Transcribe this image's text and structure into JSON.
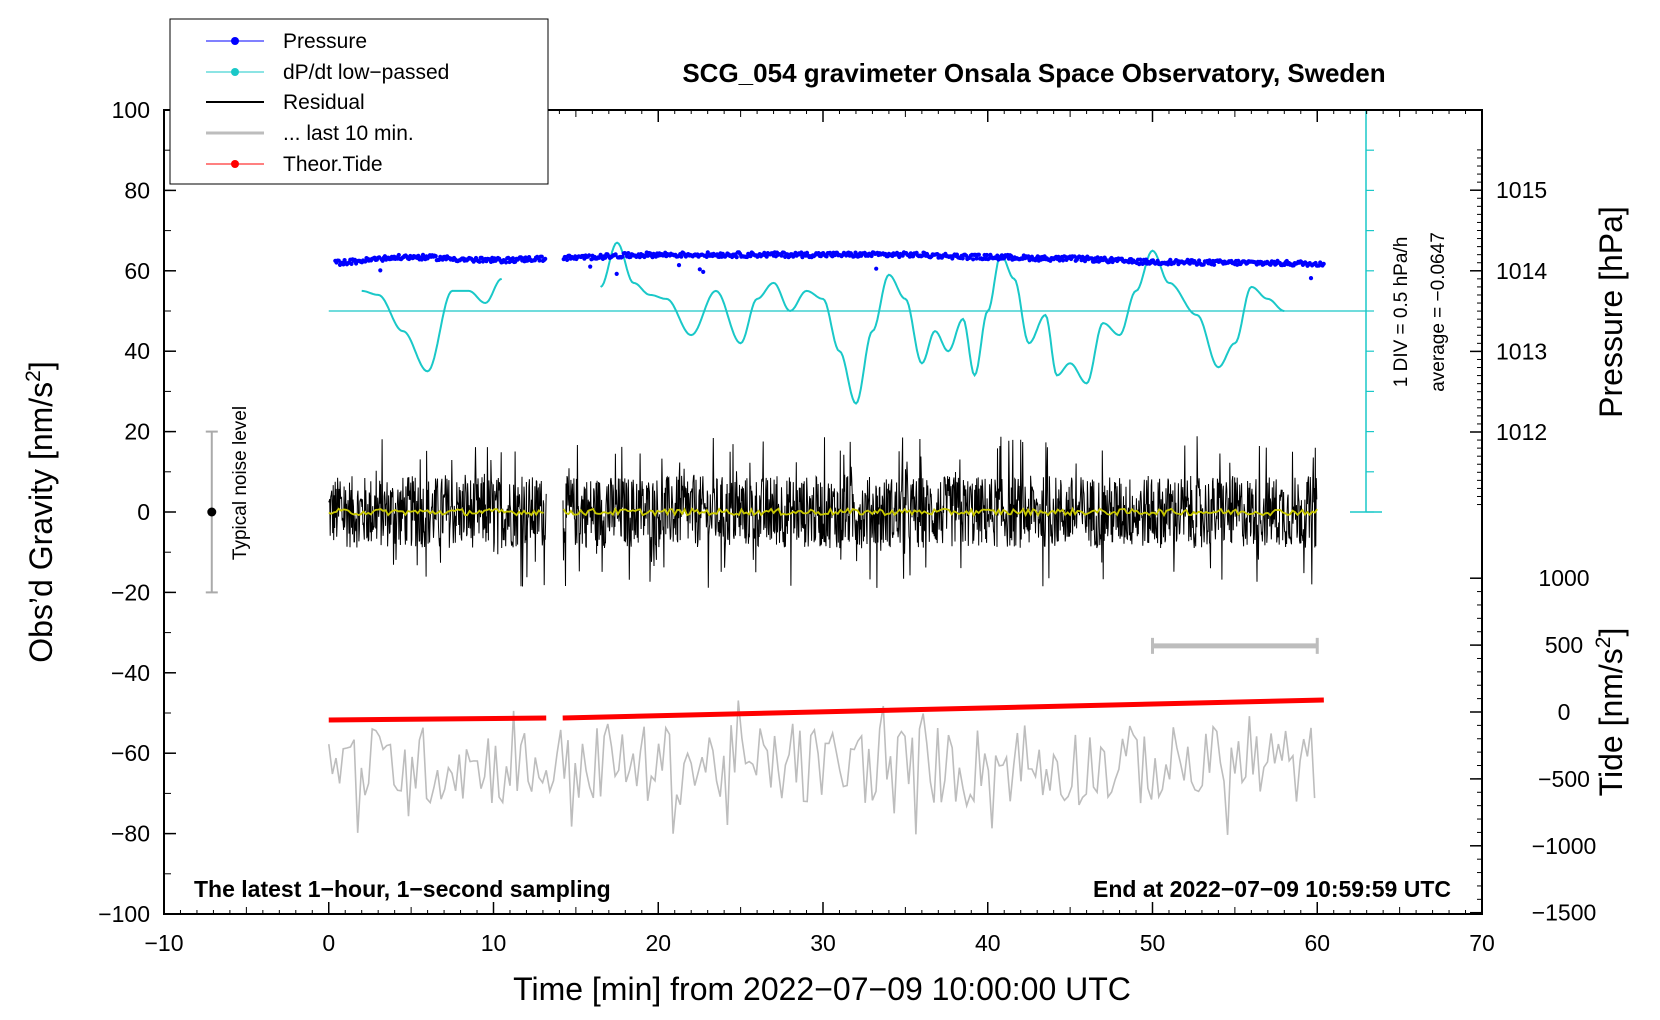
{
  "chart_data": {
    "type": "line",
    "title": "SCG_054 gravimeter Onsala Space Observatory, Sweden",
    "xlabel": "Time [min] from 2022−07−09 10:00:00 UTC",
    "ylabel_left_main": "Obs’d Gravity [nm/s",
    "ylabel_left_sup": "2",
    "ylabel_left_end": "]",
    "ylabel_right_pressure": "Pressure [hPa]",
    "ylabel_right_tide_main": "Tide [nm/s",
    "ylabel_right_tide_sup": "2",
    "ylabel_right_tide_end": "]",
    "xlim": [
      -10,
      70
    ],
    "ylim": [
      -100,
      100
    ],
    "pressure_lim": [
      1012,
      1015
    ],
    "tide_lim": [
      -1500,
      1000
    ],
    "x_ticks": [
      "−10",
      "0",
      "10",
      "20",
      "30",
      "40",
      "50",
      "60",
      "70"
    ],
    "y_ticks": [
      "−100",
      "−80",
      "−60",
      "−40",
      "−20",
      "0",
      "20",
      "40",
      "60",
      "80",
      "100"
    ],
    "pressure_ticks": [
      "1012",
      "1013",
      "1014",
      "1015"
    ],
    "tide_ticks": [
      "−1500",
      "−1000",
      "−500",
      "0",
      "500",
      "1000"
    ],
    "legend": [
      "Pressure",
      "dP/dt low−passed",
      "Residual",
      "... last 10 min.",
      "Theor.Tide"
    ],
    "annotations": {
      "bottom_left": "The latest 1−hour, 1−second sampling",
      "bottom_right": "End at 2022−07−09 10:59:59 UTC",
      "noise_label": "Typical noise level",
      "dpdt_scale": "1 DIV = 0.5 hPa/h",
      "dpdt_average": "average = −0.0647"
    },
    "noise_level": [
      -20,
      20
    ],
    "data_gap_min": [
      13.2,
      14.2
    ],
    "last10_marker_min": [
      50,
      60
    ],
    "series": [
      {
        "name": "Pressure",
        "color": "#0000ff",
        "unit": "hPa",
        "x": [
          0,
          5,
          10,
          13,
          14.2,
          20,
          25,
          30,
          35,
          40,
          45,
          50,
          55,
          60
        ],
        "values": [
          1014.1,
          1014.17,
          1014.13,
          1014.15,
          1014.16,
          1014.2,
          1014.2,
          1014.2,
          1014.2,
          1014.17,
          1014.15,
          1014.11,
          1014.1,
          1014.09
        ]
      },
      {
        "name": "dP/dt low−passed",
        "color": "#00c4c4",
        "unit": "nm/s2 plot scale",
        "x": [
          2,
          3,
          4.5,
          6,
          7.5,
          8.5,
          9.5,
          10.5,
          16.5,
          17.5,
          18.5,
          19.5,
          20.5,
          22,
          23.5,
          25,
          26,
          27,
          28,
          29,
          30,
          31,
          32,
          33,
          34,
          35,
          36,
          36.8,
          37.6,
          38.5,
          39.2,
          40,
          40.8,
          41.6,
          42.5,
          43.5,
          44.2,
          45,
          46,
          47,
          48,
          49,
          50,
          51,
          52.7,
          54,
          55,
          56,
          57,
          58
        ],
        "values": [
          55,
          54,
          45,
          35,
          55,
          55,
          52,
          58,
          56,
          67,
          57,
          54,
          53,
          44,
          55,
          42,
          53,
          57,
          50,
          55,
          53,
          40,
          27,
          45,
          59,
          53,
          37,
          45,
          40,
          48,
          34,
          50,
          64,
          58,
          42,
          49,
          34,
          37,
          32,
          47,
          44,
          55,
          65,
          57,
          49,
          36,
          42,
          56,
          53,
          50
        ]
      },
      {
        "name": "Residual",
        "color": "#000000",
        "unit": "nm/s2",
        "x": [
          0,
          13,
          14.2,
          60
        ],
        "values": [
          0,
          0,
          0,
          0
        ],
        "envelope": [
          -20,
          20
        ]
      },
      {
        "name": "... last 10 min.",
        "color": "#bbbbbb",
        "unit": "nm/s2 (plot offset)",
        "x": [
          0,
          60
        ],
        "values": [
          -63,
          -63
        ],
        "envelope": [
          -82,
          -45
        ]
      },
      {
        "name": "Theor.Tide",
        "color": "#ff0000",
        "unit": "nm/s2",
        "x": [
          0,
          13.2,
          14.2,
          60.4
        ],
        "values": [
          -60,
          -45,
          -45,
          90
        ]
      }
    ]
  },
  "colors": {
    "pressure": "#0000ff",
    "dpdt": "#1ac8c8",
    "residual": "#000000",
    "running_mean": "#c8c800",
    "last10": "#bdbdbd",
    "tide": "#ff0000"
  }
}
